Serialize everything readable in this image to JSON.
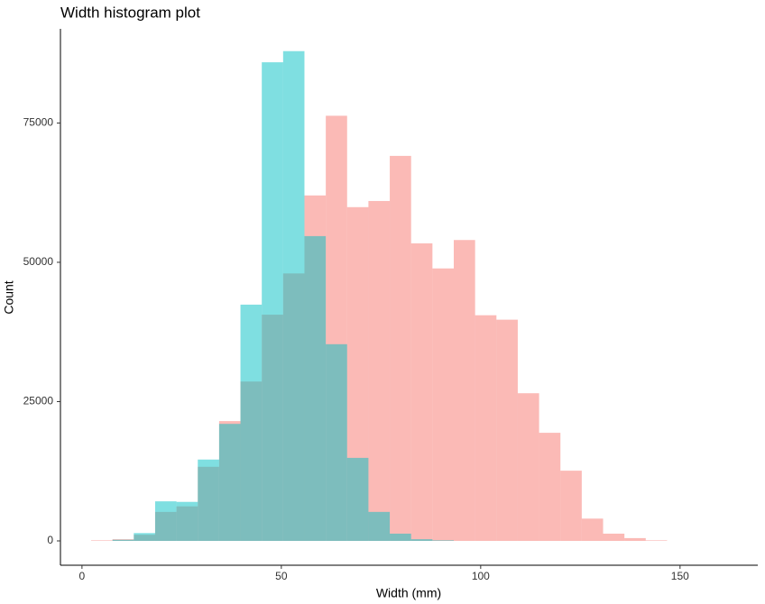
{
  "chart_data": {
    "type": "histogram",
    "title": "Width histogram plot",
    "x_label": "Width (mm)",
    "y_label": "Count",
    "bins": [
      2.3,
      7.65,
      13,
      18.35,
      23.7,
      29.05,
      34.4,
      39.75,
      45.1,
      50.45,
      55.8,
      61.15,
      66.5,
      71.85,
      77.2,
      82.55,
      87.9,
      93.25,
      98.6,
      103.95,
      109.3,
      114.65,
      120,
      125.35,
      130.7,
      136.05,
      141.4,
      146.75
    ],
    "series": [
      {
        "color": "#F8766D",
        "values": [
          100,
          300,
          1100,
          5200,
          6200,
          13300,
          21500,
          28600,
          40600,
          48000,
          62000,
          76300,
          59900,
          61000,
          69100,
          53400,
          48900,
          54000,
          40500,
          39700,
          26500,
          19400,
          12600,
          4000,
          1300,
          500,
          100
        ]
      },
      {
        "color": "#00BFC4",
        "values": [
          0,
          200,
          1400,
          7100,
          7000,
          14600,
          21000,
          42400,
          85900,
          87900,
          54700,
          35300,
          14900,
          5200,
          1300,
          300,
          100,
          0,
          0,
          0,
          0,
          0,
          0,
          0,
          0,
          0,
          0
        ]
      }
    ],
    "opacity": 0.5,
    "xlim": [
      -5.4,
      169.5
    ],
    "ylim": [
      -4370,
      91900
    ],
    "xticks": [
      0,
      50,
      100,
      150
    ],
    "yticks": [
      0,
      25000,
      50000,
      75000
    ],
    "grid": false
  }
}
